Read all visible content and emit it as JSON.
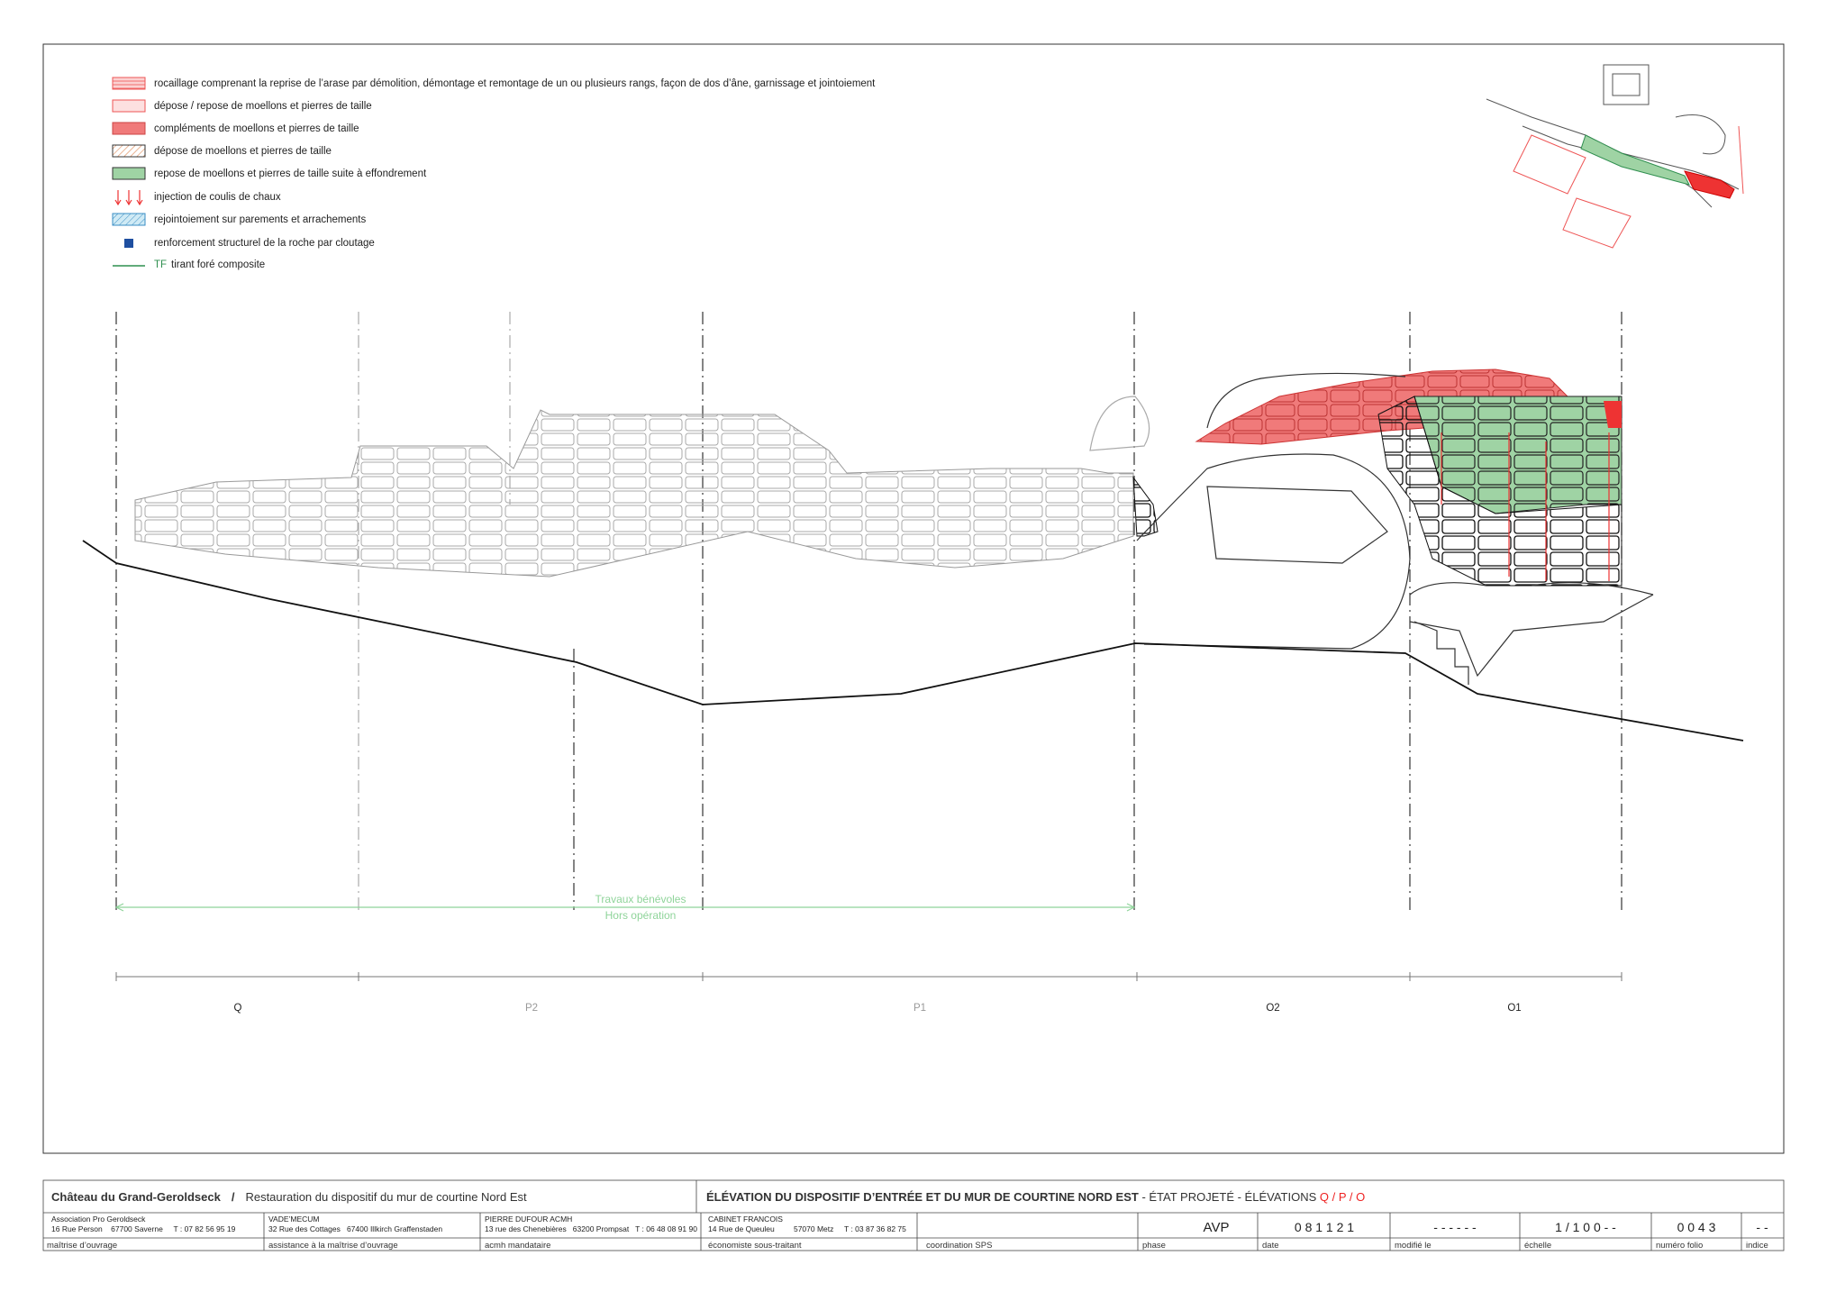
{
  "legend": [
    {
      "label": "rocaillage comprenant la reprise de l’arase par démolition, démontage et remontage de un ou plusieurs rangs, façon de dos d’âne, garnissage et jointoiement"
    },
    {
      "label": "dépose / repose de moellons et pierres de taille"
    },
    {
      "label": "compléments de moellons et pierres de taille"
    },
    {
      "label": "dépose de moellons et pierres de taille"
    },
    {
      "label": "repose de moellons et pierres de taille suite à effondrement"
    },
    {
      "label": "injection de coulis de chaux"
    },
    {
      "label": "rejointoiement sur parements et arrachements"
    },
    {
      "label": "renforcement structurel de la roche par cloutage"
    },
    {
      "code": "TF",
      "label": "tirant foré composite"
    }
  ],
  "annotations": [
    "Travaux bénévoles",
    "Hors opération"
  ],
  "sections": [
    "Q",
    "P2",
    "P1",
    "O2",
    "O1"
  ],
  "title_block": {
    "project": "Château du Grand-Geroldseck",
    "separator": "/",
    "subject": "Restauration du dispositif du mur de courtine Nord Est",
    "sheet_title": "ÉLÉVATION DU DISPOSITIF D’ENTRÉE ET DU MUR DE COURTINE NORD EST",
    "sheet_status": " - ÉTAT PROJETÉ - ÉLÉVATIONS ",
    "sheet_elevations": "Q / P / O",
    "parties": [
      {
        "name": "Association Pro Geroldseck",
        "address": "16 Rue Person    67700 Saverne     T : 07 82 56 95 19",
        "role": "maîtrise d’ouvrage"
      },
      {
        "name": "VADE’MECUM",
        "address": "32 Rue des Cottages   67400 Illkirch Graffenstaden",
        "role": "assistance à la maîtrise d’ouvrage"
      },
      {
        "name": "PIERRE DUFOUR ACMH",
        "address": "13 rue des Chenebières   63200 Prompsat   T : 06 48 08 91 90",
        "role": "acmh mandataire"
      },
      {
        "name": "CABINET FRANCOIS",
        "address": "14 Rue de Queuleu         57070 Metz     T : 03 87 36 82 75",
        "role": "économiste sous-traitant"
      },
      {
        "role": "coordination SPS"
      }
    ],
    "fields": [
      {
        "label": "phase",
        "value": "AVP"
      },
      {
        "label": "date",
        "value": "0 8 1 1 2 1"
      },
      {
        "label": "modifié le",
        "value": "- - - - - -"
      },
      {
        "label": "échelle",
        "value": "1 / 1 0 0 - -"
      },
      {
        "label": "numéro folio",
        "value": "0 0 4 3"
      },
      {
        "label": "indice",
        "value": "- -"
      }
    ]
  }
}
